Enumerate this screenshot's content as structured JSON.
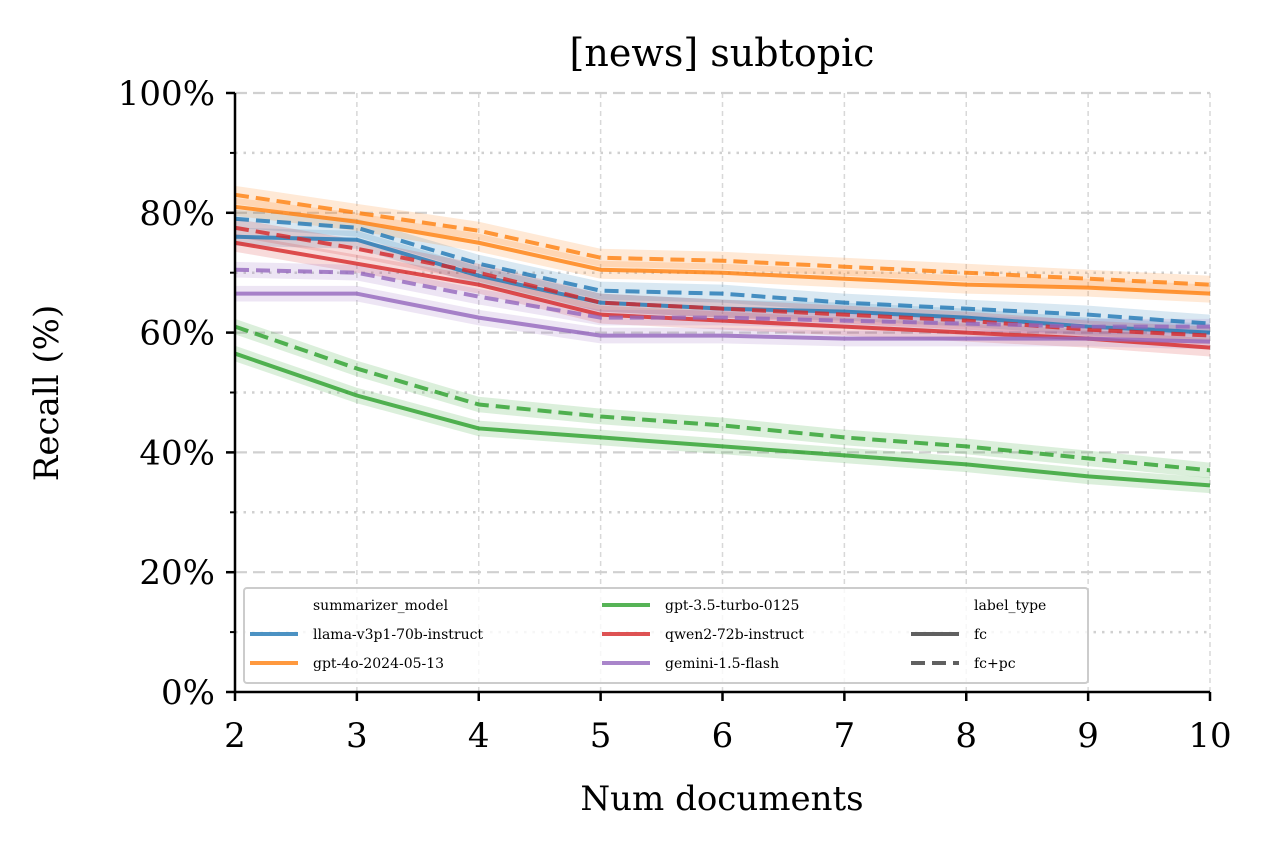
{
  "chart_data": {
    "type": "line",
    "title": "[news] subtopic",
    "xlabel": "Num documents",
    "ylabel": "Recall (%)",
    "x": [
      2,
      3,
      4,
      5,
      6,
      7,
      8,
      9,
      10
    ],
    "xlim": [
      2,
      10
    ],
    "ylim": [
      0,
      100
    ],
    "y_ticks": [
      0,
      20,
      40,
      60,
      80,
      100
    ],
    "y_tick_labels": [
      "0%",
      "20%",
      "40%",
      "60%",
      "80%",
      "100%"
    ],
    "x_tick_labels": [
      "2",
      "3",
      "4",
      "5",
      "6",
      "7",
      "8",
      "9",
      "10"
    ],
    "grid": true,
    "legend_position": "lower-left",
    "legend_hue_title": "summarizer_model",
    "legend_style_title": "label_type",
    "styles": [
      {
        "name": "fc",
        "dash": "solid"
      },
      {
        "name": "fc+pc",
        "dash": "dashed"
      }
    ],
    "series": [
      {
        "name": "llama-v3p1-70b-instruct",
        "color": "#1f77b4",
        "style": "fc",
        "values": [
          76,
          75.5,
          69.5,
          65,
          64,
          63.5,
          62.5,
          61,
          60
        ],
        "band": 1.5
      },
      {
        "name": "llama-v3p1-70b-instruct",
        "color": "#1f77b4",
        "style": "fc+pc",
        "values": [
          79,
          77.5,
          71.5,
          67,
          66.5,
          65,
          64,
          63,
          61.5
        ],
        "band": 1.5
      },
      {
        "name": "gpt-4o-2024-05-13",
        "color": "#ff7f0e",
        "style": "fc",
        "values": [
          81,
          78.5,
          75,
          70.5,
          70,
          69,
          68,
          67.5,
          66.5
        ],
        "band": 1.5
      },
      {
        "name": "gpt-4o-2024-05-13",
        "color": "#ff7f0e",
        "style": "fc+pc",
        "values": [
          83,
          80,
          77,
          72.5,
          72,
          71,
          70,
          69,
          68
        ],
        "band": 1.5
      },
      {
        "name": "gpt-3.5-turbo-0125",
        "color": "#2ca02c",
        "style": "fc",
        "values": [
          56.5,
          49.5,
          44,
          42.5,
          41,
          39.5,
          38,
          36,
          34.5
        ],
        "band": 1.3
      },
      {
        "name": "gpt-3.5-turbo-0125",
        "color": "#2ca02c",
        "style": "fc+pc",
        "values": [
          61,
          54,
          48,
          46,
          44.5,
          42.5,
          41,
          39,
          37
        ],
        "band": 1.3
      },
      {
        "name": "qwen2-72b-instruct",
        "color": "#d62728",
        "style": "fc",
        "values": [
          75,
          71.5,
          68,
          63,
          62,
          61,
          60,
          59,
          57.5
        ],
        "band": 1.5
      },
      {
        "name": "qwen2-72b-instruct",
        "color": "#d62728",
        "style": "fc+pc",
        "values": [
          77.5,
          74,
          70,
          65,
          64,
          63,
          62,
          60.5,
          59.5
        ],
        "band": 1.5
      },
      {
        "name": "gemini-1.5-flash",
        "color": "#9467bd",
        "style": "fc",
        "values": [
          66.5,
          66.5,
          62.5,
          59.5,
          59.5,
          59,
          59,
          59,
          58.5
        ],
        "band": 1.3
      },
      {
        "name": "gemini-1.5-flash",
        "color": "#9467bd",
        "style": "fc+pc",
        "values": [
          70.5,
          70,
          66,
          62.5,
          62.5,
          62,
          61.5,
          61,
          61
        ],
        "band": 1.3
      }
    ]
  }
}
